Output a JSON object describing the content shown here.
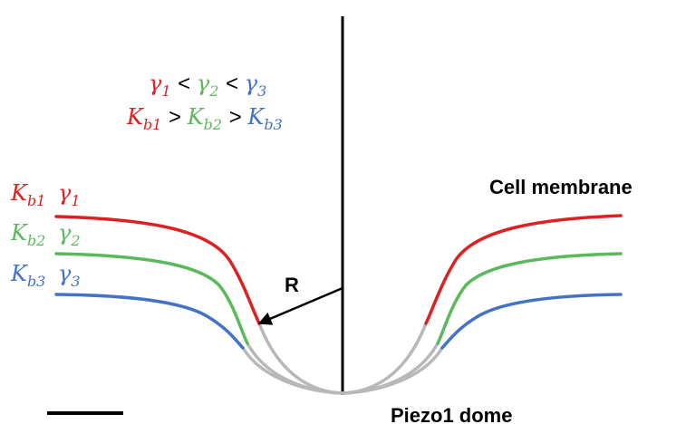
{
  "colors": {
    "curve_1": "#dd2020",
    "curve_2": "#5cb85c",
    "curve_3": "#4472c4",
    "dome": "#b8b8b8",
    "axis": "#000000",
    "text": "#000000"
  },
  "relations": {
    "gamma": {
      "a": "γ",
      "s1": "1",
      "op1": " < ",
      "b": "γ",
      "s2": "2",
      "op2": " < ",
      "c": "γ",
      "s3": "3"
    },
    "kb": {
      "a": "K",
      "sub_a": "b1",
      "op1": " > ",
      "b": "K",
      "sub_b": "b2",
      "op2": " > ",
      "c": "K",
      "sub_c": "b3"
    }
  },
  "labels": {
    "curve_1": {
      "k": "K",
      "k_sub": "b1",
      "g": "γ",
      "g_sub": "1"
    },
    "curve_2": {
      "k": "K",
      "k_sub": "b2",
      "g": "γ",
      "g_sub": "2"
    },
    "curve_3": {
      "k": "K",
      "k_sub": "b3",
      "g": "γ",
      "g_sub": "3"
    },
    "radius": "R",
    "cell_membrane": "Cell membrane",
    "piezo_dome": "Piezo1 dome"
  }
}
